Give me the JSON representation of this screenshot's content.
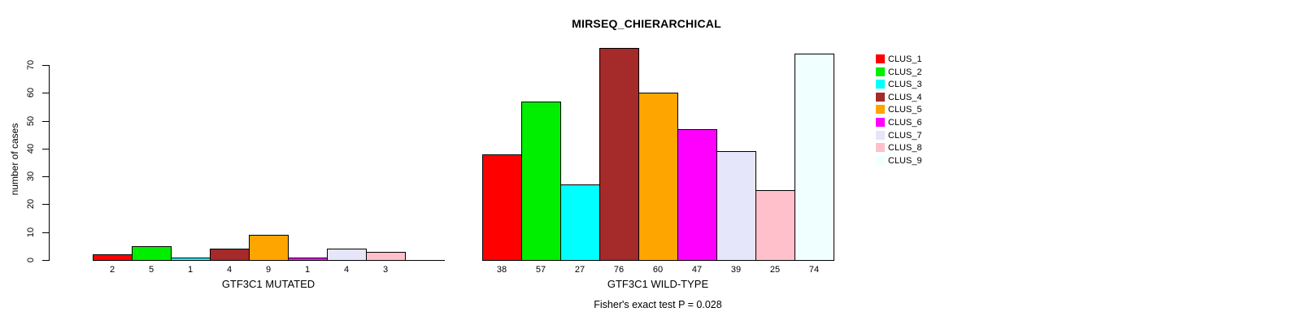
{
  "chart_data": {
    "type": "bar",
    "title": "MIRSEQ_CHIERARCHICAL",
    "ylabel": "number of cases",
    "ylim": [
      0,
      70
    ],
    "yticks": [
      0,
      10,
      20,
      30,
      40,
      50,
      60,
      70
    ],
    "grid": false,
    "legend_position": "right",
    "annotation": "Fisher's exact test P = 0.028",
    "clusters": [
      {
        "label": "CLUS_1",
        "color": "#FF0000"
      },
      {
        "label": "CLUS_2",
        "color": "#00EE00"
      },
      {
        "label": "CLUS_3",
        "color": "#00FFFF"
      },
      {
        "label": "CLUS_4",
        "color": "#A52A2A"
      },
      {
        "label": "CLUS_5",
        "color": "#FFA500"
      },
      {
        "label": "CLUS_6",
        "color": "#FF00FF"
      },
      {
        "label": "CLUS_7",
        "color": "#E6E6FA"
      },
      {
        "label": "CLUS_8",
        "color": "#FFC0CB"
      },
      {
        "label": "CLUS_9",
        "color": "#F0FFFF"
      }
    ],
    "panels": [
      {
        "xlabel": "GTF3C1 MUTATED",
        "values": [
          2,
          5,
          1,
          4,
          9,
          1,
          4,
          3,
          0
        ],
        "bar_labels": [
          "2",
          "5",
          "1",
          "4",
          "9",
          "1",
          "4",
          "3",
          ""
        ]
      },
      {
        "xlabel": "GTF3C1 WILD-TYPE",
        "values": [
          38,
          57,
          27,
          76,
          60,
          47,
          39,
          25,
          74
        ],
        "bar_labels": [
          "38",
          "57",
          "27",
          "76",
          "60",
          "47",
          "39",
          "25",
          "74"
        ]
      }
    ]
  }
}
